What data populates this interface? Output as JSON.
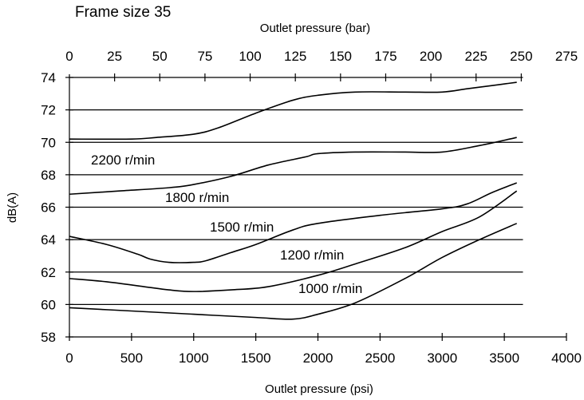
{
  "frame_label": "Frame size 35",
  "chart_data": {
    "type": "line",
    "xlabel": "Outlet pressure (psi)",
    "x2label": "Outlet pressure  (bar)",
    "ylabel": "dB(A)",
    "xlim": [
      0,
      4000
    ],
    "x2lim": [
      0,
      275
    ],
    "ylim": [
      58,
      74
    ],
    "x_ticks": [
      "0",
      "500",
      "1000",
      "1500",
      "2000",
      "2500",
      "3000",
      "3500",
      "4000"
    ],
    "x2_ticks": [
      "0",
      "25",
      "50",
      "75",
      "100",
      "125",
      "150",
      "175",
      "200",
      "225",
      "250",
      "275"
    ],
    "y_ticks": [
      "58",
      "60",
      "62",
      "64",
      "66",
      "68",
      "70",
      "72",
      "74"
    ],
    "grid": "horizontal",
    "series": [
      {
        "name": "2200 r/min",
        "x": [
          0,
          500,
          700,
          1000,
          1200,
          1500,
          1800,
          2000,
          2300,
          2700,
          3000,
          3200,
          3400,
          3600
        ],
        "y": [
          70.2,
          70.2,
          70.3,
          70.5,
          70.9,
          71.8,
          72.6,
          72.9,
          73.1,
          73.1,
          73.1,
          73.3,
          73.5,
          73.7
        ]
      },
      {
        "name": "1800 r/min",
        "x": [
          0,
          400,
          800,
          1000,
          1300,
          1600,
          1900,
          2000,
          2300,
          2700,
          3000,
          3300,
          3600
        ],
        "y": [
          66.8,
          67.0,
          67.2,
          67.4,
          67.9,
          68.6,
          69.1,
          69.3,
          69.4,
          69.4,
          69.4,
          69.8,
          70.3
        ]
      },
      {
        "name": "1500 r/min",
        "x": [
          0,
          300,
          550,
          650,
          800,
          1000,
          1100,
          1300,
          1500,
          1800,
          2000,
          2500,
          3000,
          3200,
          3400,
          3600
        ],
        "y": [
          64.2,
          63.7,
          63.1,
          62.8,
          62.6,
          62.6,
          62.7,
          63.2,
          63.7,
          64.6,
          65.0,
          65.5,
          65.9,
          66.2,
          66.9,
          67.5
        ]
      },
      {
        "name": "1200 r/min",
        "x": [
          0,
          300,
          600,
          800,
          1000,
          1300,
          1600,
          2000,
          2300,
          2700,
          3000,
          3300,
          3600
        ],
        "y": [
          61.6,
          61.4,
          61.1,
          60.9,
          60.8,
          60.9,
          61.1,
          61.8,
          62.5,
          63.5,
          64.5,
          65.4,
          67.0
        ]
      },
      {
        "name": "1000 r/min",
        "x": [
          0,
          500,
          1000,
          1500,
          1800,
          2000,
          2300,
          2700,
          3000,
          3300,
          3600
        ],
        "y": [
          59.8,
          59.6,
          59.4,
          59.2,
          59.1,
          59.4,
          60.1,
          61.6,
          62.9,
          64.0,
          65.0
        ]
      }
    ]
  }
}
